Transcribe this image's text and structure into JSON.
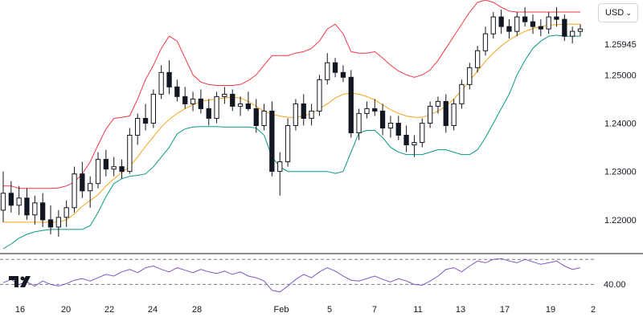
{
  "currency_selector": {
    "label": "USD",
    "chevron": "chevron-down-icon"
  },
  "logo": {
    "name": "tradingview-logo-icon"
  },
  "current_price": {
    "label": "1.25945"
  },
  "rsi_panel": {
    "level_label": "40.00"
  },
  "colors": {
    "up": "#131722",
    "down": "#131722",
    "upper_band": "#f23645",
    "lower_band": "#089981",
    "basis": "#f7a21b",
    "rsi_line": "#7e57c2",
    "grid": "#d1d4dc",
    "divider": "#131722"
  },
  "chart_data": [
    {
      "type": "candlestick",
      "overlay": "bollinger-bands",
      "x": [
        "16",
        "20",
        "22",
        "24",
        "28",
        "Feb",
        "5",
        "7",
        "11",
        "13",
        "17",
        "19",
        "2"
      ],
      "x_tick_labels": [
        "16",
        "20",
        "22",
        "24",
        "28",
        "Feb",
        "5",
        "7",
        "11",
        "13",
        "17",
        "19",
        "2"
      ],
      "y_tick_labels": [
        "1.22000",
        "1.23000",
        "1.24000",
        "1.25000"
      ],
      "ylim": [
        1.213,
        1.2655
      ],
      "last_value": 1.25945,
      "legend": null,
      "candles": [
        [
          1.222,
          1.23,
          1.2195,
          1.2255
        ],
        [
          1.2255,
          1.228,
          1.2215,
          1.223
        ],
        [
          1.223,
          1.227,
          1.221,
          1.2245
        ],
        [
          1.2245,
          1.2265,
          1.22,
          1.221
        ],
        [
          1.221,
          1.225,
          1.219,
          1.2235
        ],
        [
          1.2235,
          1.2255,
          1.2185,
          1.22
        ],
        [
          1.22,
          1.223,
          1.217,
          1.2185
        ],
        [
          1.2185,
          1.222,
          1.2165,
          1.2205
        ],
        [
          1.2205,
          1.224,
          1.2185,
          1.2225
        ],
        [
          1.2225,
          1.231,
          1.2215,
          1.2295
        ],
        [
          1.2295,
          1.232,
          1.2245,
          1.226
        ],
        [
          1.226,
          1.229,
          1.2225,
          1.2275
        ],
        [
          1.2275,
          1.234,
          1.2265,
          1.2325
        ],
        [
          1.2325,
          1.2345,
          1.229,
          1.2305
        ],
        [
          1.2305,
          1.233,
          1.229,
          1.231
        ],
        [
          1.231,
          1.2325,
          1.2285,
          1.23
        ],
        [
          1.23,
          1.239,
          1.2295,
          1.2375
        ],
        [
          1.2375,
          1.242,
          1.2355,
          1.241
        ],
        [
          1.241,
          1.244,
          1.2385,
          1.24
        ],
        [
          1.24,
          1.247,
          1.239,
          1.246
        ],
        [
          1.246,
          1.252,
          1.245,
          1.2505
        ],
        [
          1.2505,
          1.253,
          1.246,
          1.2475
        ],
        [
          1.2475,
          1.249,
          1.2445,
          1.2455
        ],
        [
          1.2455,
          1.2475,
          1.243,
          1.244
        ],
        [
          1.244,
          1.2465,
          1.2425,
          1.245
        ],
        [
          1.245,
          1.247,
          1.242,
          1.243
        ],
        [
          1.243,
          1.245,
          1.2395,
          1.241
        ],
        [
          1.241,
          1.2465,
          1.24,
          1.2455
        ],
        [
          1.2455,
          1.2475,
          1.244,
          1.246
        ],
        [
          1.246,
          1.247,
          1.2425,
          1.2435
        ],
        [
          1.2435,
          1.2455,
          1.2415,
          1.244
        ],
        [
          1.244,
          1.2465,
          1.2425,
          1.243
        ],
        [
          1.243,
          1.245,
          1.238,
          1.2395
        ],
        [
          1.2395,
          1.244,
          1.2385,
          1.2425
        ],
        [
          1.2425,
          1.2445,
          1.229,
          1.23
        ],
        [
          1.23,
          1.234,
          1.225,
          1.232
        ],
        [
          1.232,
          1.241,
          1.231,
          1.2395
        ],
        [
          1.2395,
          1.245,
          1.2385,
          1.244
        ],
        [
          1.244,
          1.246,
          1.2395,
          1.241
        ],
        [
          1.241,
          1.244,
          1.2395,
          1.2425
        ],
        [
          1.2425,
          1.25,
          1.2415,
          1.249
        ],
        [
          1.249,
          1.2545,
          1.248,
          1.2525
        ],
        [
          1.2525,
          1.2535,
          1.2495,
          1.2505
        ],
        [
          1.2505,
          1.252,
          1.2485,
          1.2495
        ],
        [
          1.2495,
          1.251,
          1.237,
          1.238
        ],
        [
          1.238,
          1.243,
          1.2365,
          1.242
        ],
        [
          1.242,
          1.2445,
          1.241,
          1.243
        ],
        [
          1.243,
          1.245,
          1.2415,
          1.2425
        ],
        [
          1.2425,
          1.244,
          1.2375,
          1.239
        ],
        [
          1.239,
          1.2415,
          1.237,
          1.24
        ],
        [
          1.24,
          1.2415,
          1.2365,
          1.2375
        ],
        [
          1.2375,
          1.2395,
          1.234,
          1.2355
        ],
        [
          1.2355,
          1.2375,
          1.233,
          1.236
        ],
        [
          1.236,
          1.241,
          1.235,
          1.24
        ],
        [
          1.24,
          1.2445,
          1.239,
          1.2435
        ],
        [
          1.2435,
          1.2455,
          1.242,
          1.2445
        ],
        [
          1.2445,
          1.246,
          1.238,
          1.2395
        ],
        [
          1.2395,
          1.245,
          1.2385,
          1.244
        ],
        [
          1.244,
          1.249,
          1.243,
          1.248
        ],
        [
          1.248,
          1.2525,
          1.247,
          1.2515
        ],
        [
          1.2515,
          1.256,
          1.2505,
          1.255
        ],
        [
          1.255,
          1.26,
          1.254,
          1.2585
        ],
        [
          1.2585,
          1.263,
          1.2575,
          1.262
        ],
        [
          1.262,
          1.2635,
          1.2585,
          1.26
        ],
        [
          1.26,
          1.2615,
          1.2575,
          1.259
        ],
        [
          1.259,
          1.263,
          1.258,
          1.262
        ],
        [
          1.262,
          1.264,
          1.26,
          1.261
        ],
        [
          1.261,
          1.2625,
          1.2585,
          1.26
        ],
        [
          1.26,
          1.2615,
          1.258,
          1.2595
        ],
        [
          1.2595,
          1.263,
          1.2585,
          1.262
        ],
        [
          1.262,
          1.264,
          1.26,
          1.2615
        ],
        [
          1.2615,
          1.2625,
          1.257,
          1.258
        ],
        [
          1.258,
          1.26,
          1.2565,
          1.259
        ],
        [
          1.259,
          1.2605,
          1.258,
          1.2595
        ]
      ],
      "bollinger": {
        "upper": [
          1.227,
          1.227,
          1.2265,
          1.2265,
          1.2265,
          1.2265,
          1.2265,
          1.2266,
          1.227,
          1.2278,
          1.2295,
          1.232,
          1.2355,
          1.2388,
          1.241,
          1.2412,
          1.2415,
          1.245,
          1.249,
          1.252,
          1.2555,
          1.258,
          1.257,
          1.2535,
          1.25,
          1.2485,
          1.248,
          1.2478,
          1.2478,
          1.2478,
          1.248,
          1.2488,
          1.25,
          1.252,
          1.254,
          1.254,
          1.254,
          1.2545,
          1.2548,
          1.2555,
          1.257,
          1.2595,
          1.2605,
          1.2585,
          1.2548,
          1.2545,
          1.2545,
          1.2548,
          1.2535,
          1.252,
          1.2508,
          1.25,
          1.2495,
          1.25,
          1.251,
          1.253,
          1.2555,
          1.258,
          1.2605,
          1.263,
          1.265,
          1.2655,
          1.265,
          1.264,
          1.2632,
          1.263,
          1.263,
          1.263,
          1.263,
          1.263,
          1.263,
          1.263,
          1.263,
          1.263
        ],
        "middle": [
          1.2195,
          1.2195,
          1.2195,
          1.2195,
          1.2195,
          1.2195,
          1.2195,
          1.2195,
          1.22,
          1.2212,
          1.2228,
          1.224,
          1.2252,
          1.227,
          1.2285,
          1.2298,
          1.231,
          1.233,
          1.2352,
          1.2372,
          1.2392,
          1.2408,
          1.242,
          1.243,
          1.2438,
          1.2445,
          1.2448,
          1.245,
          1.2452,
          1.2454,
          1.2452,
          1.2445,
          1.2435,
          1.2425,
          1.2418,
          1.2415,
          1.2412,
          1.2412,
          1.2415,
          1.242,
          1.243,
          1.244,
          1.2452,
          1.246,
          1.2462,
          1.246,
          1.2455,
          1.2448,
          1.2438,
          1.2428,
          1.242,
          1.2415,
          1.2412,
          1.2412,
          1.2418,
          1.2425,
          1.2435,
          1.245,
          1.2468,
          1.2488,
          1.2508,
          1.2528,
          1.2545,
          1.256,
          1.2572,
          1.2582,
          1.259,
          1.2596,
          1.26,
          1.2603,
          1.2604,
          1.2605,
          1.2605,
          1.2605
        ],
        "lower": [
          1.214,
          1.215,
          1.2162,
          1.217,
          1.2175,
          1.2178,
          1.218,
          1.218,
          1.218,
          1.218,
          1.218,
          1.2188,
          1.2215,
          1.2248,
          1.2275,
          1.2285,
          1.229,
          1.2292,
          1.2295,
          1.231,
          1.233,
          1.235,
          1.2378,
          1.2388,
          1.2392,
          1.2393,
          1.2393,
          1.2393,
          1.2392,
          1.2392,
          1.2392,
          1.2392,
          1.239,
          1.2375,
          1.233,
          1.231,
          1.23,
          1.23,
          1.23,
          1.23,
          1.23,
          1.23,
          1.2296,
          1.23,
          1.234,
          1.238,
          1.2385,
          1.2385,
          1.237,
          1.235,
          1.234,
          1.2335,
          1.2335,
          1.2335,
          1.234,
          1.2345,
          1.2345,
          1.234,
          1.2335,
          1.2335,
          1.2345,
          1.237,
          1.24,
          1.243,
          1.246,
          1.25,
          1.253,
          1.2555,
          1.257,
          1.258,
          1.2582,
          1.258,
          1.258,
          1.258
        ]
      }
    },
    {
      "type": "line",
      "name": "RSI",
      "ylim": [
        25,
        75
      ],
      "reference_levels": [
        70,
        40
      ],
      "level_label": "40.00",
      "values": [
        42,
        46,
        40,
        43,
        38,
        44,
        40,
        38,
        41,
        45,
        47,
        44,
        48,
        52,
        50,
        55,
        58,
        54,
        60,
        62,
        58,
        55,
        60,
        57,
        54,
        58,
        55,
        53,
        56,
        52,
        55,
        50,
        48,
        44,
        33,
        31,
        38,
        46,
        52,
        48,
        55,
        60,
        56,
        50,
        45,
        44,
        47,
        50,
        46,
        43,
        47,
        44,
        40,
        39,
        44,
        50,
        58,
        60,
        55,
        62,
        68,
        66,
        70,
        71,
        68,
        66,
        70,
        67,
        64,
        66,
        68,
        62,
        58,
        60
      ]
    }
  ]
}
